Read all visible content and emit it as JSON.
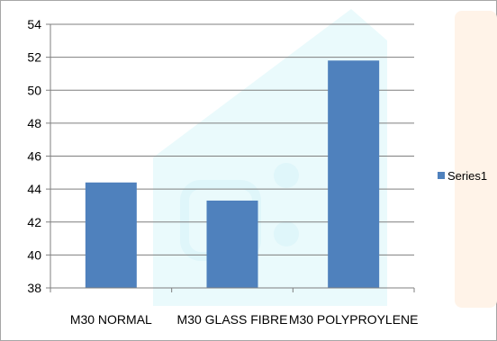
{
  "chart_data": {
    "type": "bar",
    "categories": [
      "M30 NORMAL",
      "M30 GLASS FIBRE",
      "M30 POLYPROYLENE"
    ],
    "series": [
      {
        "name": "Series1",
        "values": [
          44.4,
          43.3,
          51.8
        ]
      }
    ],
    "ylim": [
      38,
      54
    ],
    "yticks": [
      "38",
      "40",
      "42",
      "44",
      "46",
      "48",
      "50",
      "52",
      "54"
    ],
    "grid": true,
    "legend": "right",
    "title": "",
    "xlabel": "",
    "ylabel": ""
  },
  "colors": {
    "bar": "#4f81bd",
    "grid": "#7f7f7f",
    "axis": "#7f7f7f",
    "text": "#000000",
    "watermark_teal": "#bfeff7",
    "watermark_orange": "#fde8d4",
    "border": "#a6a6a6"
  }
}
